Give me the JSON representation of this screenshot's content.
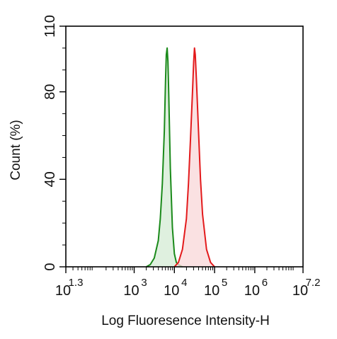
{
  "chart_data": {
    "type": "area",
    "xlabel": "Log Fluoresence Intensity-H",
    "ylabel": "Count  (%)",
    "xscale": "log",
    "xlim": [
      1.3,
      7.2
    ],
    "ylim": [
      0,
      110
    ],
    "y_ticks": [
      0,
      40,
      80,
      110
    ],
    "x_ticks": [
      {
        "base": "10",
        "exp": "1.3",
        "pos": 1.3
      },
      {
        "base": "10",
        "exp": "3",
        "pos": 3
      },
      {
        "base": "10",
        "exp": "4",
        "pos": 4
      },
      {
        "base": "10",
        "exp": "5",
        "pos": 5
      },
      {
        "base": "10",
        "exp": "6",
        "pos": 6
      },
      {
        "base": "10",
        "exp": "7.2",
        "pos": 7.2
      }
    ],
    "grid": false,
    "legend": "none",
    "series": [
      {
        "color": "#1a8a1a",
        "fill": "#d4ebd4",
        "x": [
          3.3,
          3.4,
          3.5,
          3.6,
          3.65,
          3.7,
          3.75,
          3.78,
          3.8,
          3.82,
          3.84,
          3.86,
          3.9,
          3.95,
          4.0,
          4.05,
          4.1,
          4.2
        ],
        "y": [
          0,
          1,
          4,
          12,
          22,
          38,
          62,
          85,
          97,
          100,
          94,
          78,
          45,
          18,
          6,
          2,
          1,
          0
        ]
      },
      {
        "color": "#e31a1c",
        "fill": "#f8d7d8",
        "x": [
          4.0,
          4.1,
          4.2,
          4.3,
          4.35,
          4.4,
          4.45,
          4.48,
          4.5,
          4.52,
          4.55,
          4.6,
          4.65,
          4.7,
          4.8,
          4.9,
          5.0
        ],
        "y": [
          0,
          2,
          8,
          22,
          38,
          58,
          80,
          94,
          100,
          97,
          85,
          62,
          40,
          24,
          8,
          2,
          0
        ]
      }
    ]
  }
}
